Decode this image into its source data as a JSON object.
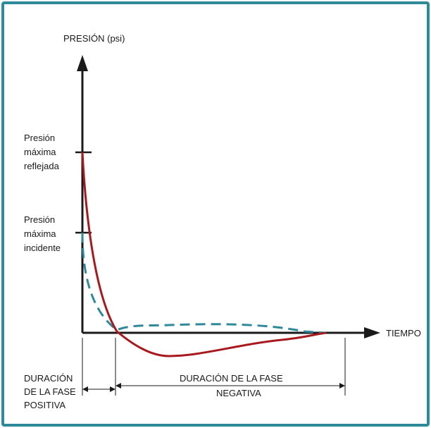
{
  "axes": {
    "y_label": "PRESIÓN (psi)",
    "x_label": "TIEMPO"
  },
  "markers": {
    "reflected": [
      "Presión",
      "máxima",
      "reflejada"
    ],
    "incident": [
      "Presión",
      "máxima",
      "incidente"
    ]
  },
  "durations": {
    "positive": [
      "DURACIÓN",
      "DE LA FASE",
      "POSITIVA"
    ],
    "negative": [
      "DURACIÓN DE LA FASE",
      "NEGATIVA"
    ]
  },
  "colors": {
    "frame": "#2e8a99",
    "reflected_curve": "#a8191e",
    "incident_curve": "#2e8a99",
    "axis": "#1a1a1a"
  }
}
